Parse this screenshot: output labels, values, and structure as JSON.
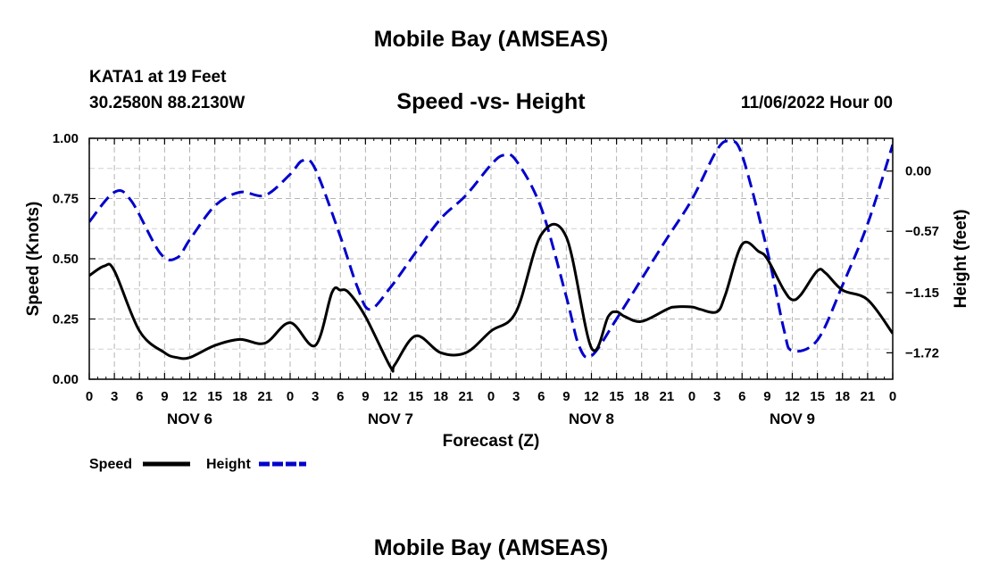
{
  "page": {
    "title": "Mobile Bay (AMSEAS)",
    "station": "KATA1 at 19 Feet",
    "coords": "30.2580N  88.2130W",
    "datetime": "11/06/2022 Hour 00",
    "bottom_title": "Mobile Bay (AMSEAS)"
  },
  "chart_data": {
    "type": "line",
    "title": "Speed -vs- Height",
    "xlabel": "Forecast (Z)",
    "ylabel": "Speed (Knots)",
    "y2label": "Height (feet)",
    "xlim": [
      0,
      96
    ],
    "ylim": [
      0,
      1
    ],
    "y2lim": [
      -1.97,
      0.31
    ],
    "grid": true,
    "x_ticks": [
      0,
      3,
      6,
      9,
      12,
      15,
      18,
      21,
      24,
      27,
      30,
      33,
      36,
      39,
      42,
      45,
      48,
      51,
      54,
      57,
      60,
      63,
      66,
      69,
      72,
      75,
      78,
      81,
      84,
      87,
      90,
      93,
      96
    ],
    "x_tick_labels": [
      "0",
      "3",
      "6",
      "9",
      "12",
      "15",
      "18",
      "21",
      "0",
      "3",
      "6",
      "9",
      "12",
      "15",
      "18",
      "21",
      "0",
      "3",
      "6",
      "9",
      "12",
      "15",
      "18",
      "21",
      "0",
      "3",
      "6",
      "9",
      "12",
      "15",
      "18",
      "21",
      "0"
    ],
    "y_ticks": [
      0,
      0.25,
      0.5,
      0.75,
      1.0
    ],
    "y_tick_labels": [
      "0.00",
      "0.25",
      "0.50",
      "0.75",
      "1.00"
    ],
    "y2_ticks": [
      0.0,
      -0.57,
      -1.15,
      -1.72
    ],
    "y2_tick_labels": [
      "0.00",
      "−0.57",
      "−1.15",
      "−1.72"
    ],
    "day_labels": [
      {
        "label": "NOV 6",
        "x": 12
      },
      {
        "label": "NOV 7",
        "x": 36
      },
      {
        "label": "NOV 8",
        "x": 60
      },
      {
        "label": "NOV 9",
        "x": 84
      }
    ],
    "legend": [
      "Speed",
      "Height"
    ],
    "series": [
      {
        "name": "Speed",
        "axis": "left",
        "color": "#000000",
        "dash": "solid",
        "x": [
          0,
          1.8,
          3,
          6,
          9,
          10.5,
          12,
          15,
          18,
          21,
          24,
          27,
          29,
          30,
          31,
          33,
          36,
          36.5,
          39,
          42,
          45,
          48,
          51,
          54,
          57,
          60,
          62,
          63,
          64,
          66,
          69,
          70,
          72,
          73,
          75,
          76,
          78,
          80,
          81,
          83,
          84,
          85,
          87,
          88,
          90,
          93,
          96
        ],
        "y": [
          0.43,
          0.47,
          0.45,
          0.2,
          0.11,
          0.09,
          0.09,
          0.14,
          0.165,
          0.15,
          0.235,
          0.14,
          0.36,
          0.37,
          0.36,
          0.26,
          0.05,
          0.06,
          0.18,
          0.11,
          0.11,
          0.2,
          0.28,
          0.6,
          0.59,
          0.13,
          0.26,
          0.28,
          0.26,
          0.24,
          0.29,
          0.3,
          0.3,
          0.29,
          0.28,
          0.35,
          0.56,
          0.53,
          0.5,
          0.37,
          0.33,
          0.35,
          0.45,
          0.44,
          0.37,
          0.33,
          0.19
        ]
      },
      {
        "name": "Height",
        "axis": "right",
        "color": "#0000cc",
        "dash": "dashed",
        "x": [
          0,
          3,
          5,
          8.5,
          10.5,
          12,
          15,
          18,
          21,
          24,
          25.5,
          27,
          30,
          32,
          33.5,
          36,
          39,
          42,
          45,
          48,
          49.5,
          51,
          54,
          57,
          58.5,
          60,
          63,
          66,
          69,
          72,
          75,
          76.5,
          78,
          81,
          83,
          84,
          87,
          90,
          93,
          96
        ],
        "y": [
          -0.48,
          -0.2,
          -0.28,
          -0.78,
          -0.82,
          -0.65,
          -0.33,
          -0.2,
          -0.23,
          -0.03,
          0.1,
          0.02,
          -0.62,
          -1.09,
          -1.31,
          -1.1,
          -0.77,
          -0.45,
          -0.23,
          0.06,
          0.15,
          0.1,
          -0.35,
          -1.19,
          -1.65,
          -1.75,
          -1.4,
          -1.02,
          -0.64,
          -0.27,
          0.2,
          0.28,
          0.15,
          -0.75,
          -1.5,
          -1.7,
          -1.6,
          -1.08,
          -0.5,
          0.25
        ]
      }
    ]
  }
}
